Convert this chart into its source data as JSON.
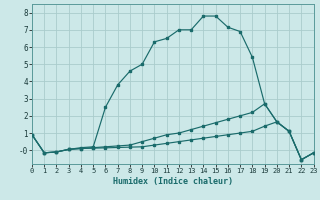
{
  "xlabel": "Humidex (Indice chaleur)",
  "background_color": "#cce8e8",
  "grid_color": "#aacccc",
  "line_color": "#1a6b6b",
  "series": [
    {
      "x": [
        0,
        1,
        2,
        3,
        4,
        5,
        6,
        7,
        8,
        9,
        10,
        11,
        12,
        13,
        14,
        15,
        16,
        17,
        18,
        19,
        20,
        21,
        22,
        23
      ],
      "y": [
        0.9,
        -0.15,
        -0.1,
        0.05,
        0.15,
        0.2,
        2.5,
        3.8,
        4.6,
        5.0,
        6.3,
        6.5,
        7.0,
        7.0,
        7.8,
        7.8,
        7.15,
        6.9,
        5.4,
        2.7,
        1.65,
        1.1,
        -0.55,
        -0.15
      ]
    },
    {
      "x": [
        0,
        1,
        2,
        3,
        4,
        5,
        6,
        7,
        8,
        9,
        10,
        11,
        12,
        13,
        14,
        15,
        16,
        17,
        18,
        19,
        20,
        21,
        22,
        23
      ],
      "y": [
        0.9,
        -0.15,
        -0.1,
        0.05,
        0.1,
        0.15,
        0.2,
        0.25,
        0.3,
        0.5,
        0.7,
        0.9,
        1.0,
        1.2,
        1.4,
        1.6,
        1.8,
        2.0,
        2.2,
        2.7,
        1.65,
        1.1,
        -0.55,
        -0.15
      ]
    },
    {
      "x": [
        0,
        1,
        2,
        3,
        4,
        5,
        6,
        7,
        8,
        9,
        10,
        11,
        12,
        13,
        14,
        15,
        16,
        17,
        18,
        19,
        20,
        21,
        22,
        23
      ],
      "y": [
        0.9,
        -0.15,
        -0.1,
        0.05,
        0.1,
        0.12,
        0.14,
        0.16,
        0.18,
        0.2,
        0.3,
        0.4,
        0.5,
        0.6,
        0.7,
        0.8,
        0.9,
        1.0,
        1.1,
        1.4,
        1.65,
        1.1,
        -0.55,
        -0.15
      ]
    }
  ],
  "xlim": [
    0,
    23
  ],
  "ylim": [
    -0.8,
    8.5
  ],
  "yticks": [
    0,
    1,
    2,
    3,
    4,
    5,
    6,
    7,
    8
  ],
  "ytick_labels": [
    "-0",
    "1",
    "2",
    "3",
    "4",
    "5",
    "6",
    "7",
    "8"
  ],
  "xticks": [
    0,
    1,
    2,
    3,
    4,
    5,
    6,
    7,
    8,
    9,
    10,
    11,
    12,
    13,
    14,
    15,
    16,
    17,
    18,
    19,
    20,
    21,
    22,
    23
  ]
}
